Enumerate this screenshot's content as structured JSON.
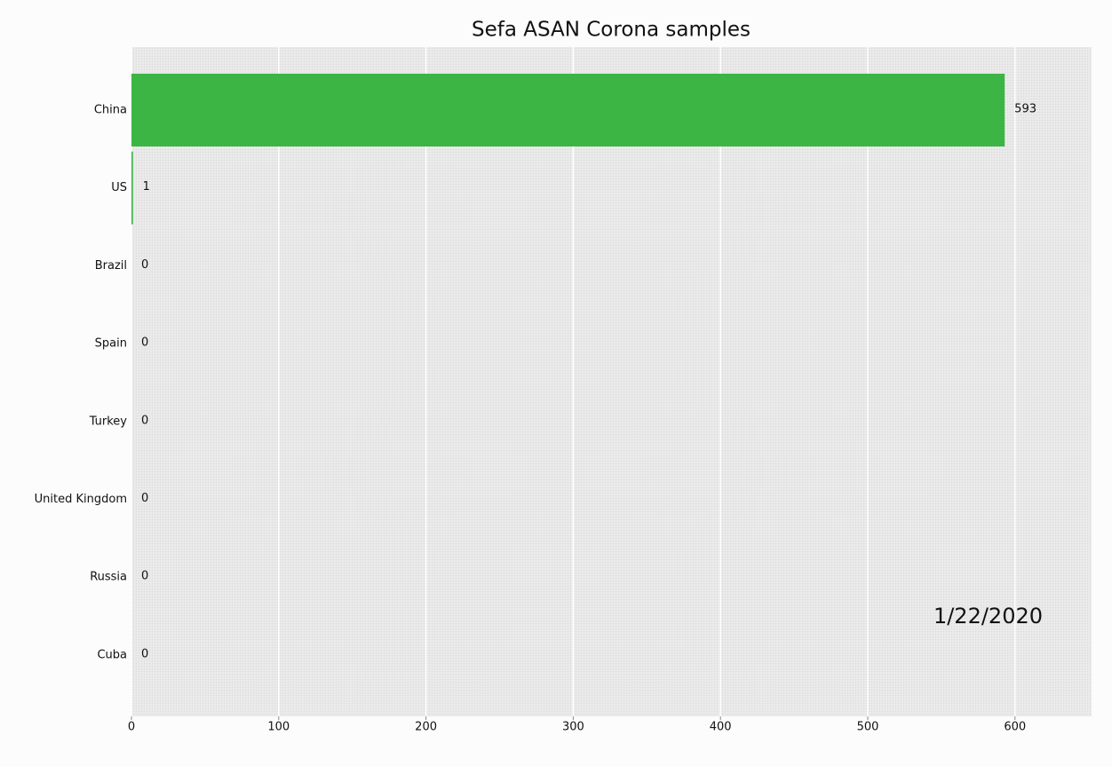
{
  "chart_data": {
    "type": "hbar",
    "title": "Sefa ASAN Corona samples",
    "categories": [
      "China",
      "US",
      "Brazil",
      "Spain",
      "Turkey",
      "United Kingdom",
      "Russia",
      "Cuba"
    ],
    "values": [
      593,
      1,
      0,
      0,
      0,
      0,
      0,
      0
    ],
    "color": "#3cb544",
    "annotation": "1/22/2020",
    "xlim": [
      0,
      652
    ],
    "xticks": [
      0,
      100,
      200,
      300,
      400,
      500,
      600
    ],
    "grid": true
  }
}
